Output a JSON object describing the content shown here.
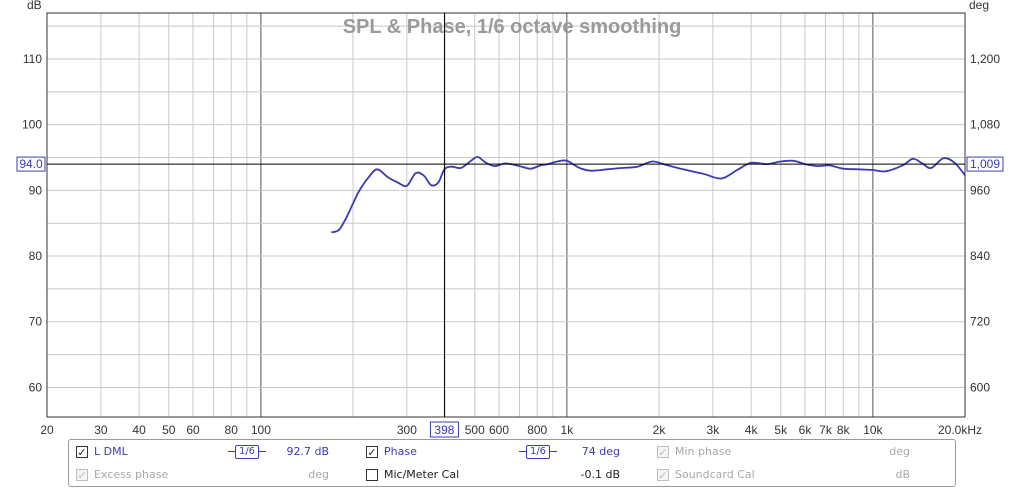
{
  "chart_data": {
    "type": "line",
    "title": "SPL & Phase, 1/6 octave smoothing",
    "x_scale": "log",
    "xlim": [
      20,
      20000
    ],
    "x_unit": "kHz",
    "x_ticks": [
      {
        "value": 20,
        "label": "20"
      },
      {
        "value": 30,
        "label": "30"
      },
      {
        "value": 40,
        "label": "40"
      },
      {
        "value": 50,
        "label": "50"
      },
      {
        "value": 60,
        "label": "60"
      },
      {
        "value": 80,
        "label": "80"
      },
      {
        "value": 100,
        "label": "100"
      },
      {
        "value": 300,
        "label": "300"
      },
      {
        "value": 500,
        "label": "500"
      },
      {
        "value": 600,
        "label": "600"
      },
      {
        "value": 800,
        "label": "800"
      },
      {
        "value": 1000,
        "label": "1k"
      },
      {
        "value": 2000,
        "label": "2k"
      },
      {
        "value": 3000,
        "label": "3k"
      },
      {
        "value": 4000,
        "label": "4k"
      },
      {
        "value": 5000,
        "label": "5k"
      },
      {
        "value": 6000,
        "label": "6k"
      },
      {
        "value": 7000,
        "label": "7k"
      },
      {
        "value": 8000,
        "label": "8k"
      },
      {
        "value": 10000,
        "label": "10k"
      },
      {
        "value": 20000,
        "label": "20.0kHz"
      }
    ],
    "y_left": {
      "label": "dB",
      "ylim": [
        55.5,
        117
      ],
      "ticks": [
        60,
        70,
        80,
        90,
        100,
        110
      ]
    },
    "y_right": {
      "label": "deg",
      "ylim": [
        546,
        1284
      ],
      "ticks": [
        {
          "value": 600,
          "label": "600"
        },
        {
          "value": 720,
          "label": "720"
        },
        {
          "value": 840,
          "label": "840"
        },
        {
          "value": 960,
          "label": "960"
        },
        {
          "value": 1080,
          "label": "1,080"
        },
        {
          "value": 1200,
          "label": "1,200"
        }
      ]
    },
    "grid": true,
    "cursor": {
      "x": 398,
      "x_label": "398",
      "y": 94.0,
      "y_label": "94.0",
      "right_label": "1,009"
    },
    "series": [
      {
        "name": "L DML",
        "color": "#3b3bb3",
        "x": [
          170,
          180,
          190,
          200,
          210,
          225,
          240,
          260,
          280,
          300,
          320,
          340,
          360,
          380,
          398,
          420,
          450,
          480,
          510,
          540,
          580,
          630,
          700,
          760,
          820,
          870,
          930,
          1000,
          1100,
          1200,
          1350,
          1500,
          1700,
          1900,
          2100,
          2400,
          2800,
          3200,
          3600,
          4000,
          4500,
          5000,
          5500,
          6000,
          6600,
          7200,
          8000,
          9000,
          10000,
          11000,
          12500,
          13500,
          14500,
          15500,
          17000,
          18500,
          20000
        ],
        "y": [
          83.6,
          84.0,
          85.8,
          88.0,
          90.0,
          92.0,
          93.2,
          92.0,
          91.2,
          90.7,
          92.6,
          92.3,
          90.8,
          91.2,
          93.2,
          93.6,
          93.4,
          94.3,
          95.1,
          94.3,
          93.7,
          94.1,
          93.7,
          93.3,
          93.8,
          94.0,
          94.4,
          94.5,
          93.4,
          93.0,
          93.2,
          93.4,
          93.6,
          94.4,
          93.9,
          93.2,
          92.5,
          91.8,
          93.1,
          94.2,
          94.0,
          94.4,
          94.5,
          94.0,
          93.7,
          93.8,
          93.3,
          93.2,
          93.1,
          92.9,
          93.8,
          94.8,
          94.1,
          93.4,
          94.9,
          94.2,
          92.3
        ]
      }
    ]
  },
  "legend": {
    "rows": [
      {
        "items": [
          {
            "id": "l-dml",
            "label": "L DML",
            "checked": true,
            "enabled": true,
            "smoothing": "1/6",
            "value": "92.7 dB"
          },
          {
            "id": "phase",
            "label": "Phase",
            "checked": true,
            "enabled": true,
            "smoothing": "1/6",
            "value": "74 deg"
          },
          {
            "id": "min-phase",
            "label": "Min phase",
            "checked": true,
            "enabled": false,
            "value": "deg"
          }
        ]
      },
      {
        "items": [
          {
            "id": "excess-phase",
            "label": "Excess phase",
            "checked": true,
            "enabled": false,
            "value": "deg"
          },
          {
            "id": "mic-meter-cal",
            "label": "Mic/Meter Cal",
            "checked": false,
            "enabled": true,
            "value": "-0.1 dB"
          },
          {
            "id": "soundcard-cal",
            "label": "Soundcard Cal",
            "checked": true,
            "enabled": false,
            "value": "dB"
          }
        ]
      }
    ]
  }
}
